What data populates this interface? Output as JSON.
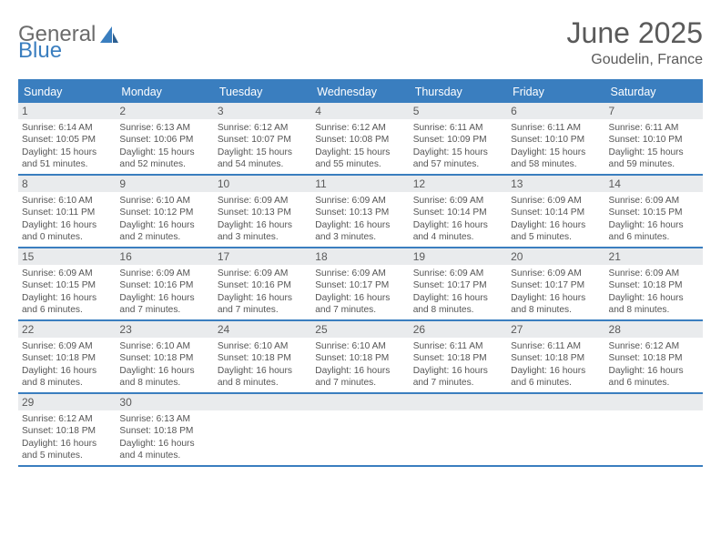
{
  "logo": {
    "text1": "General",
    "text2": "Blue"
  },
  "title": "June 2025",
  "location": "Goudelin, France",
  "colors": {
    "accent": "#3a7ebf",
    "header_bg": "#3a7ebf",
    "header_text": "#ffffff",
    "daynum_bg": "#e9ebed",
    "text": "#555555",
    "background": "#ffffff"
  },
  "day_headers": [
    "Sunday",
    "Monday",
    "Tuesday",
    "Wednesday",
    "Thursday",
    "Friday",
    "Saturday"
  ],
  "weeks": [
    [
      {
        "n": "1",
        "sr": "Sunrise: 6:14 AM",
        "ss": "Sunset: 10:05 PM",
        "d1": "Daylight: 15 hours",
        "d2": "and 51 minutes."
      },
      {
        "n": "2",
        "sr": "Sunrise: 6:13 AM",
        "ss": "Sunset: 10:06 PM",
        "d1": "Daylight: 15 hours",
        "d2": "and 52 minutes."
      },
      {
        "n": "3",
        "sr": "Sunrise: 6:12 AM",
        "ss": "Sunset: 10:07 PM",
        "d1": "Daylight: 15 hours",
        "d2": "and 54 minutes."
      },
      {
        "n": "4",
        "sr": "Sunrise: 6:12 AM",
        "ss": "Sunset: 10:08 PM",
        "d1": "Daylight: 15 hours",
        "d2": "and 55 minutes."
      },
      {
        "n": "5",
        "sr": "Sunrise: 6:11 AM",
        "ss": "Sunset: 10:09 PM",
        "d1": "Daylight: 15 hours",
        "d2": "and 57 minutes."
      },
      {
        "n": "6",
        "sr": "Sunrise: 6:11 AM",
        "ss": "Sunset: 10:10 PM",
        "d1": "Daylight: 15 hours",
        "d2": "and 58 minutes."
      },
      {
        "n": "7",
        "sr": "Sunrise: 6:11 AM",
        "ss": "Sunset: 10:10 PM",
        "d1": "Daylight: 15 hours",
        "d2": "and 59 minutes."
      }
    ],
    [
      {
        "n": "8",
        "sr": "Sunrise: 6:10 AM",
        "ss": "Sunset: 10:11 PM",
        "d1": "Daylight: 16 hours",
        "d2": "and 0 minutes."
      },
      {
        "n": "9",
        "sr": "Sunrise: 6:10 AM",
        "ss": "Sunset: 10:12 PM",
        "d1": "Daylight: 16 hours",
        "d2": "and 2 minutes."
      },
      {
        "n": "10",
        "sr": "Sunrise: 6:09 AM",
        "ss": "Sunset: 10:13 PM",
        "d1": "Daylight: 16 hours",
        "d2": "and 3 minutes."
      },
      {
        "n": "11",
        "sr": "Sunrise: 6:09 AM",
        "ss": "Sunset: 10:13 PM",
        "d1": "Daylight: 16 hours",
        "d2": "and 3 minutes."
      },
      {
        "n": "12",
        "sr": "Sunrise: 6:09 AM",
        "ss": "Sunset: 10:14 PM",
        "d1": "Daylight: 16 hours",
        "d2": "and 4 minutes."
      },
      {
        "n": "13",
        "sr": "Sunrise: 6:09 AM",
        "ss": "Sunset: 10:14 PM",
        "d1": "Daylight: 16 hours",
        "d2": "and 5 minutes."
      },
      {
        "n": "14",
        "sr": "Sunrise: 6:09 AM",
        "ss": "Sunset: 10:15 PM",
        "d1": "Daylight: 16 hours",
        "d2": "and 6 minutes."
      }
    ],
    [
      {
        "n": "15",
        "sr": "Sunrise: 6:09 AM",
        "ss": "Sunset: 10:15 PM",
        "d1": "Daylight: 16 hours",
        "d2": "and 6 minutes."
      },
      {
        "n": "16",
        "sr": "Sunrise: 6:09 AM",
        "ss": "Sunset: 10:16 PM",
        "d1": "Daylight: 16 hours",
        "d2": "and 7 minutes."
      },
      {
        "n": "17",
        "sr": "Sunrise: 6:09 AM",
        "ss": "Sunset: 10:16 PM",
        "d1": "Daylight: 16 hours",
        "d2": "and 7 minutes."
      },
      {
        "n": "18",
        "sr": "Sunrise: 6:09 AM",
        "ss": "Sunset: 10:17 PM",
        "d1": "Daylight: 16 hours",
        "d2": "and 7 minutes."
      },
      {
        "n": "19",
        "sr": "Sunrise: 6:09 AM",
        "ss": "Sunset: 10:17 PM",
        "d1": "Daylight: 16 hours",
        "d2": "and 8 minutes."
      },
      {
        "n": "20",
        "sr": "Sunrise: 6:09 AM",
        "ss": "Sunset: 10:17 PM",
        "d1": "Daylight: 16 hours",
        "d2": "and 8 minutes."
      },
      {
        "n": "21",
        "sr": "Sunrise: 6:09 AM",
        "ss": "Sunset: 10:18 PM",
        "d1": "Daylight: 16 hours",
        "d2": "and 8 minutes."
      }
    ],
    [
      {
        "n": "22",
        "sr": "Sunrise: 6:09 AM",
        "ss": "Sunset: 10:18 PM",
        "d1": "Daylight: 16 hours",
        "d2": "and 8 minutes."
      },
      {
        "n": "23",
        "sr": "Sunrise: 6:10 AM",
        "ss": "Sunset: 10:18 PM",
        "d1": "Daylight: 16 hours",
        "d2": "and 8 minutes."
      },
      {
        "n": "24",
        "sr": "Sunrise: 6:10 AM",
        "ss": "Sunset: 10:18 PM",
        "d1": "Daylight: 16 hours",
        "d2": "and 8 minutes."
      },
      {
        "n": "25",
        "sr": "Sunrise: 6:10 AM",
        "ss": "Sunset: 10:18 PM",
        "d1": "Daylight: 16 hours",
        "d2": "and 7 minutes."
      },
      {
        "n": "26",
        "sr": "Sunrise: 6:11 AM",
        "ss": "Sunset: 10:18 PM",
        "d1": "Daylight: 16 hours",
        "d2": "and 7 minutes."
      },
      {
        "n": "27",
        "sr": "Sunrise: 6:11 AM",
        "ss": "Sunset: 10:18 PM",
        "d1": "Daylight: 16 hours",
        "d2": "and 6 minutes."
      },
      {
        "n": "28",
        "sr": "Sunrise: 6:12 AM",
        "ss": "Sunset: 10:18 PM",
        "d1": "Daylight: 16 hours",
        "d2": "and 6 minutes."
      }
    ],
    [
      {
        "n": "29",
        "sr": "Sunrise: 6:12 AM",
        "ss": "Sunset: 10:18 PM",
        "d1": "Daylight: 16 hours",
        "d2": "and 5 minutes."
      },
      {
        "n": "30",
        "sr": "Sunrise: 6:13 AM",
        "ss": "Sunset: 10:18 PM",
        "d1": "Daylight: 16 hours",
        "d2": "and 4 minutes."
      },
      {
        "empty": true
      },
      {
        "empty": true
      },
      {
        "empty": true
      },
      {
        "empty": true
      },
      {
        "empty": true
      }
    ]
  ]
}
